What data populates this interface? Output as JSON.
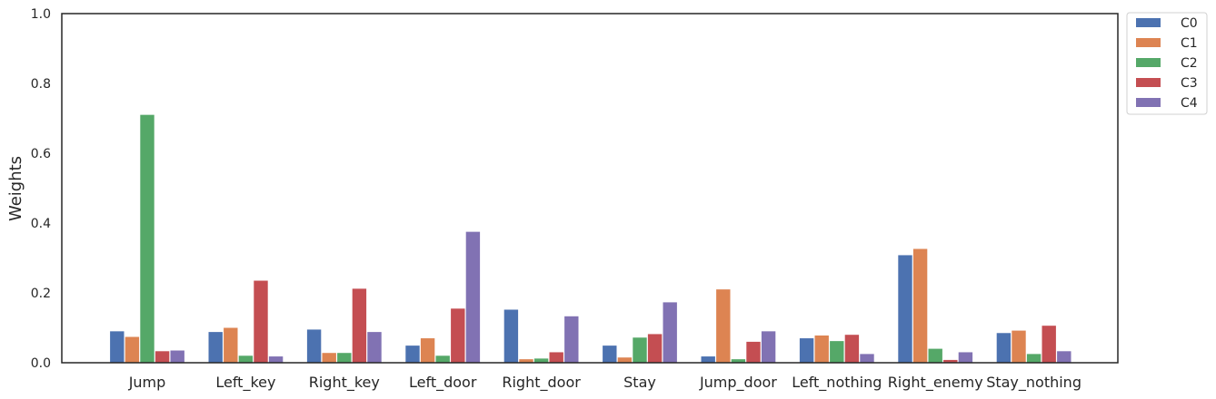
{
  "chart_data": {
    "type": "bar",
    "title": "",
    "xlabel": "",
    "ylabel": "Weights",
    "ylim": [
      0,
      1.0
    ],
    "yticks": [
      "0.0",
      "0.2",
      "0.4",
      "0.6",
      "0.8",
      "1.0"
    ],
    "grid": false,
    "legend_position": "outside-top-right",
    "categories": [
      "Jump",
      "Left_key",
      "Right_key",
      "Left_door",
      "Right_door",
      "Stay",
      "Jump_door",
      "Left_nothing",
      "Right_enemy",
      "Stay_nothing"
    ],
    "series": [
      {
        "name": "C0",
        "color": "#4c72b0",
        "values": [
          0.09,
          0.088,
          0.095,
          0.049,
          0.152,
          0.049,
          0.018,
          0.07,
          0.308,
          0.085
        ]
      },
      {
        "name": "C1",
        "color": "#dd8452",
        "values": [
          0.074,
          0.1,
          0.028,
          0.07,
          0.01,
          0.015,
          0.21,
          0.078,
          0.326,
          0.092
        ]
      },
      {
        "name": "C2",
        "color": "#55a868",
        "values": [
          0.71,
          0.02,
          0.028,
          0.02,
          0.012,
          0.072,
          0.01,
          0.062,
          0.04,
          0.025
        ]
      },
      {
        "name": "C3",
        "color": "#c44e52",
        "values": [
          0.033,
          0.235,
          0.212,
          0.155,
          0.03,
          0.082,
          0.06,
          0.08,
          0.008,
          0.106
        ]
      },
      {
        "name": "C4",
        "color": "#8172b3",
        "values": [
          0.035,
          0.018,
          0.088,
          0.375,
          0.133,
          0.173,
          0.09,
          0.025,
          0.03,
          0.033
        ]
      }
    ]
  }
}
